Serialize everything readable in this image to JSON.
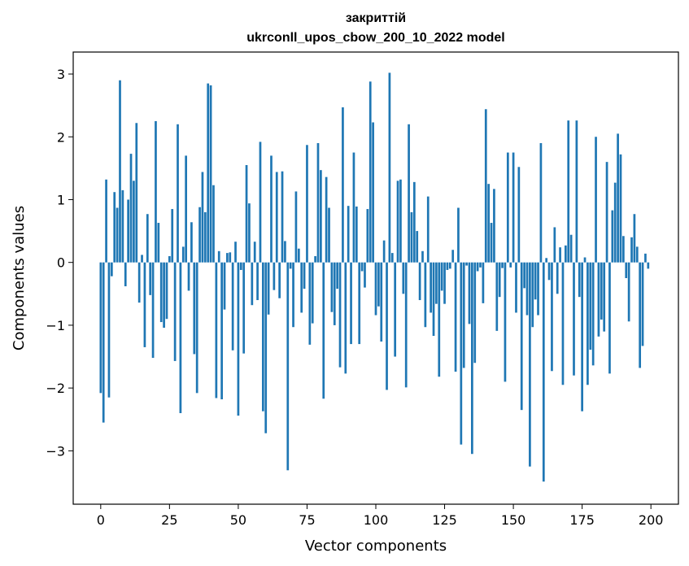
{
  "chart_data": {
    "type": "bar",
    "title": "закриттій",
    "subtitle": "ukrconll_upos_cbow_200_10_2022 model",
    "xlabel": "Vector components",
    "ylabel": "Components values",
    "xlim": [
      -10,
      210
    ],
    "ylim": [
      -3.85,
      3.35
    ],
    "xticks": [
      0,
      25,
      50,
      75,
      100,
      125,
      150,
      175,
      200
    ],
    "xtick_labels": [
      "0",
      "25",
      "50",
      "75",
      "100",
      "125",
      "150",
      "175",
      "200"
    ],
    "yticks": [
      -3,
      -2,
      -1,
      0,
      1,
      2,
      3
    ],
    "ytick_labels": [
      "−3",
      "−2",
      "−1",
      "0",
      "1",
      "2",
      "3"
    ],
    "grid": false,
    "bar_color": "#1f77b4",
    "x": [
      0,
      1,
      2,
      3,
      4,
      5,
      6,
      7,
      8,
      9,
      10,
      11,
      12,
      13,
      14,
      15,
      16,
      17,
      18,
      19,
      20,
      21,
      22,
      23,
      24,
      25,
      26,
      27,
      28,
      29,
      30,
      31,
      32,
      33,
      34,
      35,
      36,
      37,
      38,
      39,
      40,
      41,
      42,
      43,
      44,
      45,
      46,
      47,
      48,
      49,
      50,
      51,
      52,
      53,
      54,
      55,
      56,
      57,
      58,
      59,
      60,
      61,
      62,
      63,
      64,
      65,
      66,
      67,
      68,
      69,
      70,
      71,
      72,
      73,
      74,
      75,
      76,
      77,
      78,
      79,
      80,
      81,
      82,
      83,
      84,
      85,
      86,
      87,
      88,
      89,
      90,
      91,
      92,
      93,
      94,
      95,
      96,
      97,
      98,
      99,
      100,
      101,
      102,
      103,
      104,
      105,
      106,
      107,
      108,
      109,
      110,
      111,
      112,
      113,
      114,
      115,
      116,
      117,
      118,
      119,
      120,
      121,
      122,
      123,
      124,
      125,
      126,
      127,
      128,
      129,
      130,
      131,
      132,
      133,
      134,
      135,
      136,
      137,
      138,
      139,
      140,
      141,
      142,
      143,
      144,
      145,
      146,
      147,
      148,
      149,
      150,
      151,
      152,
      153,
      154,
      155,
      156,
      157,
      158,
      159,
      160,
      161,
      162,
      163,
      164,
      165,
      166,
      167,
      168,
      169,
      170,
      171,
      172,
      173,
      174,
      175,
      176,
      177,
      178,
      179,
      180,
      181,
      182,
      183,
      184,
      185,
      186,
      187,
      188,
      189,
      190,
      191,
      192,
      193,
      194,
      195,
      196,
      197,
      198,
      199
    ],
    "values": [
      -2.08,
      -2.55,
      1.32,
      -2.15,
      -0.22,
      1.12,
      0.87,
      2.9,
      1.15,
      -0.38,
      1.0,
      1.73,
      1.3,
      2.22,
      -0.64,
      0.12,
      -1.35,
      0.77,
      -0.52,
      -1.52,
      2.25,
      0.63,
      -0.95,
      -1.04,
      -0.9,
      0.1,
      0.85,
      -1.57,
      2.2,
      -2.4,
      0.25,
      1.7,
      -0.45,
      0.64,
      -1.46,
      -2.08,
      0.88,
      1.44,
      0.8,
      2.85,
      2.82,
      1.23,
      -2.16,
      0.18,
      -2.18,
      -0.75,
      0.15,
      0.16,
      -1.4,
      0.33,
      -2.44,
      -0.12,
      -1.45,
      1.55,
      0.94,
      -0.68,
      0.33,
      -0.6,
      1.92,
      -2.37,
      -2.72,
      -0.83,
      1.7,
      -0.44,
      1.44,
      -0.57,
      1.45,
      0.34,
      -3.31,
      -0.1,
      -1.03,
      1.13,
      0.22,
      -0.8,
      -0.42,
      1.87,
      -1.31,
      -0.97,
      0.1,
      1.9,
      1.47,
      -2.17,
      1.36,
      0.87,
      -0.79,
      -1.0,
      -0.42,
      -1.67,
      2.47,
      -1.77,
      0.9,
      -1.3,
      1.75,
      0.89,
      -1.3,
      -0.14,
      -0.4,
      0.85,
      2.88,
      2.23,
      -0.84,
      -0.7,
      -1.26,
      0.35,
      -2.03,
      3.02,
      0.15,
      -1.5,
      1.3,
      1.32,
      -0.5,
      -1.99,
      2.2,
      0.8,
      1.28,
      0.5,
      -0.6,
      0.18,
      -1.03,
      1.05,
      -0.8,
      -1.17,
      -0.66,
      -1.82,
      -0.45,
      -0.66,
      -0.12,
      -0.1,
      0.2,
      -1.74,
      0.87,
      -2.9,
      -1.68,
      -0.05,
      -0.98,
      -3.05,
      -1.6,
      -0.14,
      -0.08,
      -0.65,
      2.44,
      1.25,
      0.63,
      1.17,
      -1.09,
      -0.55,
      -0.09,
      -1.9,
      1.75,
      -0.08,
      1.75,
      -0.8,
      1.52,
      -2.35,
      -0.41,
      -0.84,
      -3.25,
      -1.03,
      -0.59,
      -0.84,
      1.9,
      -3.49,
      0.07,
      -0.28,
      -1.73,
      0.56,
      -0.5,
      0.24,
      -1.95,
      0.27,
      2.26,
      0.44,
      -1.8,
      2.26,
      -0.55,
      -2.37,
      0.08,
      -1.95,
      -1.39,
      -1.64,
      2.0,
      -1.18,
      -0.91,
      -1.1,
      1.6,
      -1.77,
      0.83,
      1.27,
      2.05,
      1.72,
      0.42,
      -0.25,
      -0.94,
      0.4,
      0.77,
      0.25,
      -1.68,
      -1.33,
      0.14,
      -0.1
    ]
  }
}
